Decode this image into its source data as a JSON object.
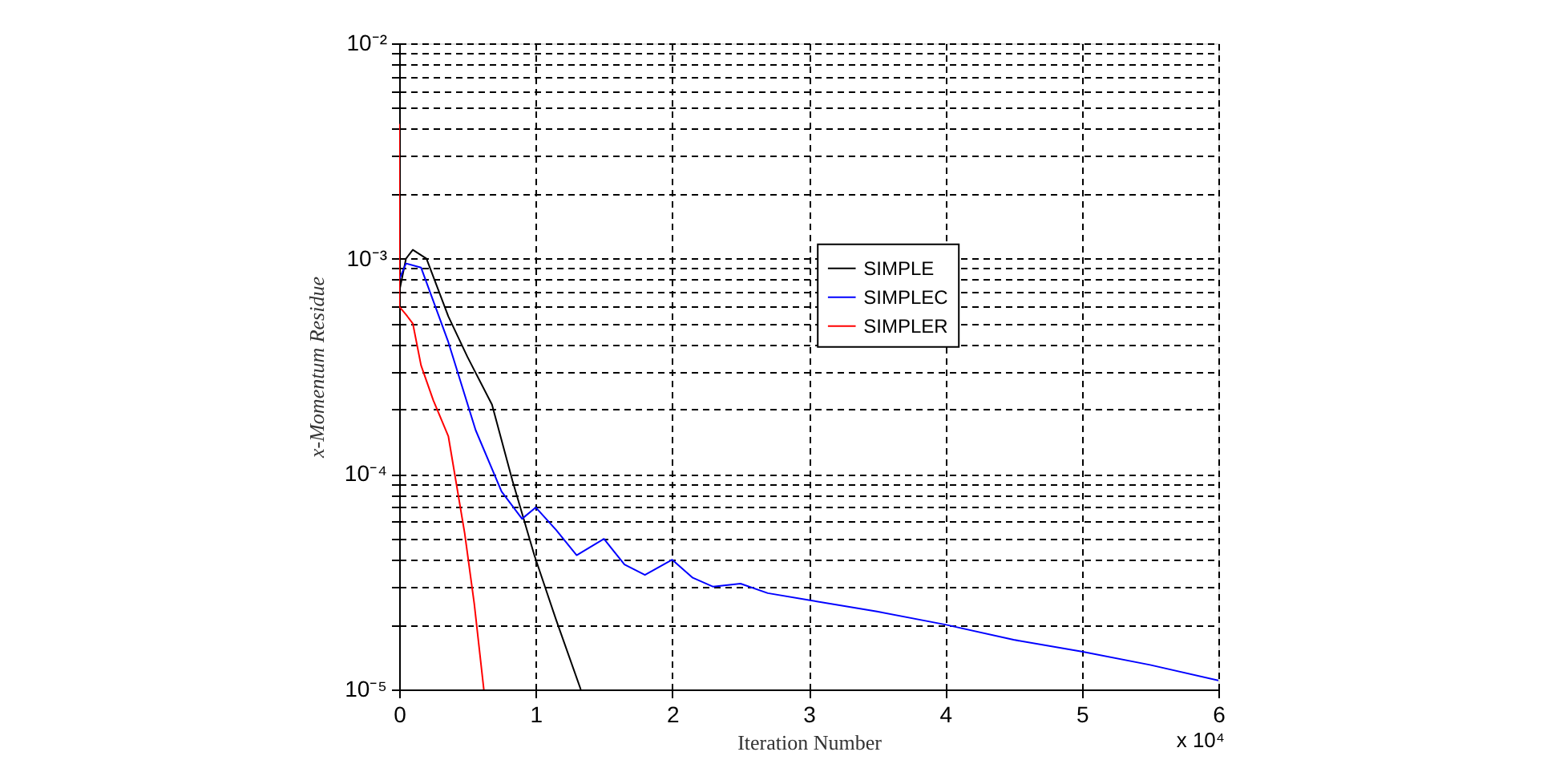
{
  "chart_data": {
    "type": "line",
    "xlabel": "Iteration Number",
    "ylabel": "x-Momentum Residue",
    "annotations": [
      "x 10⁴"
    ],
    "log": "y",
    "grid": true,
    "legend": "right",
    "xlim": [
      0,
      6
    ],
    "xticks": [
      0,
      1,
      2,
      3,
      4,
      5,
      6
    ],
    "ylim": [
      1e-05,
      0.01
    ],
    "yticks": [
      {
        "value": 1e-05,
        "label": "10⁻⁵"
      },
      {
        "value": 2e-05,
        "label": null
      },
      {
        "value": 3e-05,
        "label": null
      },
      {
        "value": 4e-05,
        "label": null
      },
      {
        "value": 5e-05,
        "label": null
      },
      {
        "value": 6e-05,
        "label": null
      },
      {
        "value": 7e-05,
        "label": null
      },
      {
        "value": 8e-05,
        "label": null
      },
      {
        "value": 9e-05,
        "label": null
      },
      {
        "value": 0.0001,
        "label": "10⁻⁴"
      },
      {
        "value": 0.0002,
        "label": null
      },
      {
        "value": 0.0003,
        "label": null
      },
      {
        "value": 0.0004,
        "label": null
      },
      {
        "value": 0.0005,
        "label": null
      },
      {
        "value": 0.0006,
        "label": null
      },
      {
        "value": 0.0007,
        "label": null
      },
      {
        "value": 0.0008,
        "label": null
      },
      {
        "value": 0.0009,
        "label": null
      },
      {
        "value": 0.001,
        "label": "10⁻³"
      },
      {
        "value": 0.002,
        "label": null
      },
      {
        "value": 0.003,
        "label": null
      },
      {
        "value": 0.004,
        "label": null
      },
      {
        "value": 0.005,
        "label": null
      },
      {
        "value": 0.006,
        "label": null
      },
      {
        "value": 0.007,
        "label": null
      },
      {
        "value": 0.008,
        "label": null
      },
      {
        "value": 0.009,
        "label": null
      },
      {
        "value": 0.01,
        "label": "10⁻²"
      }
    ],
    "series": [
      {
        "name": "SIMPLE",
        "color": "#000000",
        "x": [
          0,
          0.05,
          0.1,
          0.2,
          0.36,
          0.5,
          0.68,
          0.83,
          0.99,
          1.15,
          1.33
        ],
        "values": [
          0.0007,
          0.001,
          0.0011,
          0.001,
          0.00054,
          0.00035,
          0.00021,
          9.3e-05,
          4.2e-05,
          2.1e-05,
          1e-05
        ]
      },
      {
        "name": "SIMPLEC",
        "color": "#0000ff",
        "x": [
          0,
          0.05,
          0.16,
          0.36,
          0.56,
          0.75,
          0.9,
          1.0,
          1.15,
          1.3,
          1.5,
          1.65,
          1.8,
          2.0,
          2.15,
          2.3,
          2.5,
          2.7,
          3.0,
          3.5,
          4.0,
          4.5,
          5.0,
          5.5,
          6.0
        ],
        "values": [
          0.0008,
          0.00095,
          0.00091,
          0.00041,
          0.00016,
          8.3e-05,
          6.2e-05,
          7e-05,
          5.5e-05,
          4.2e-05,
          5e-05,
          3.8e-05,
          3.4e-05,
          4e-05,
          3.3e-05,
          3e-05,
          3.1e-05,
          2.8e-05,
          2.6e-05,
          2.3e-05,
          2e-05,
          1.7e-05,
          1.5e-05,
          1.3e-05,
          1.1e-05
        ]
      },
      {
        "name": "SIMPLER",
        "color": "#ff0000",
        "x": [
          0,
          0,
          0,
          0.05,
          0.1,
          0.16,
          0.25,
          0.36,
          0.48,
          0.55,
          0.62
        ],
        "values": [
          0.0006,
          0.0042,
          0.0006,
          0.00055,
          0.0005,
          0.00032,
          0.00022,
          0.00015,
          5.3e-05,
          2.5e-05,
          1e-05
        ]
      }
    ]
  }
}
